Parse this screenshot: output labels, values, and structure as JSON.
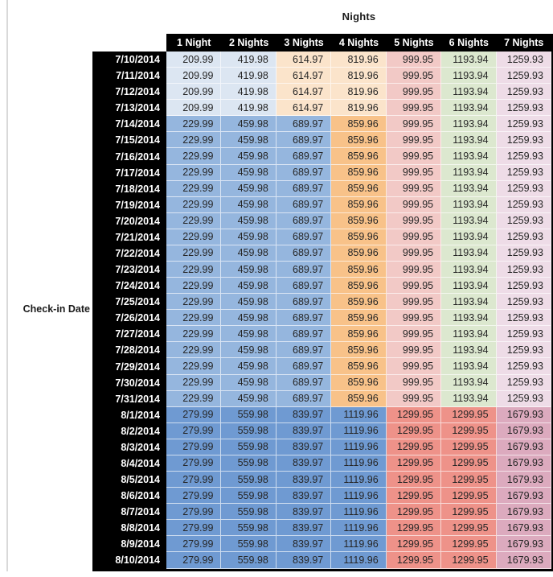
{
  "title": "Nights",
  "row_axis_label": "Check-in Date",
  "colors": {
    "header_bg": "#000000",
    "header_text": "#ffffff",
    "date_cell_bg": "#000000",
    "date_cell_text": "#ffffff",
    "value_text": "#262626",
    "table_border": "#000000",
    "page_gridline": "#d9d9d9"
  },
  "styles": {
    "early_july": [
      "#dce6f2",
      "#dce6f2",
      "#fbe4cb",
      "#fbe4cb",
      "#f2c9c6",
      "#dce8cf",
      "#eedce7"
    ],
    "mid_july": [
      "#95b6de",
      "#95b6de",
      "#95b6de",
      "#f8c289",
      "#f2c9c6",
      "#dce8cf",
      "#eedce7"
    ],
    "august": [
      "#6f9ad2",
      "#6f9ad2",
      "#6f9ad2",
      "#6f9ad2",
      "#ee9289",
      "#ee9289",
      "#dcaabe"
    ]
  },
  "chart_data": {
    "type": "table",
    "title": "Nights",
    "row_axis_label": "Check-in Date",
    "columns": [
      "1 Night",
      "2 Nights",
      "3 Nights",
      "4 Nights",
      "5 Nights",
      "6 Nights",
      "7 Nights"
    ],
    "rows": [
      {
        "date": "7/10/2014",
        "values": [
          "209.99",
          "419.98",
          "614.97",
          "819.96",
          "999.95",
          "1193.94",
          "1259.93"
        ],
        "style": "early_july"
      },
      {
        "date": "7/11/2014",
        "values": [
          "209.99",
          "419.98",
          "614.97",
          "819.96",
          "999.95",
          "1193.94",
          "1259.93"
        ],
        "style": "early_july"
      },
      {
        "date": "7/12/2014",
        "values": [
          "209.99",
          "419.98",
          "614.97",
          "819.96",
          "999.95",
          "1193.94",
          "1259.93"
        ],
        "style": "early_july"
      },
      {
        "date": "7/13/2014",
        "values": [
          "209.99",
          "419.98",
          "614.97",
          "819.96",
          "999.95",
          "1193.94",
          "1259.93"
        ],
        "style": "early_july"
      },
      {
        "date": "7/14/2014",
        "values": [
          "229.99",
          "459.98",
          "689.97",
          "859.96",
          "999.95",
          "1193.94",
          "1259.93"
        ],
        "style": "mid_july"
      },
      {
        "date": "7/15/2014",
        "values": [
          "229.99",
          "459.98",
          "689.97",
          "859.96",
          "999.95",
          "1193.94",
          "1259.93"
        ],
        "style": "mid_july"
      },
      {
        "date": "7/16/2014",
        "values": [
          "229.99",
          "459.98",
          "689.97",
          "859.96",
          "999.95",
          "1193.94",
          "1259.93"
        ],
        "style": "mid_july"
      },
      {
        "date": "7/17/2014",
        "values": [
          "229.99",
          "459.98",
          "689.97",
          "859.96",
          "999.95",
          "1193.94",
          "1259.93"
        ],
        "style": "mid_july"
      },
      {
        "date": "7/18/2014",
        "values": [
          "229.99",
          "459.98",
          "689.97",
          "859.96",
          "999.95",
          "1193.94",
          "1259.93"
        ],
        "style": "mid_july"
      },
      {
        "date": "7/19/2014",
        "values": [
          "229.99",
          "459.98",
          "689.97",
          "859.96",
          "999.95",
          "1193.94",
          "1259.93"
        ],
        "style": "mid_july"
      },
      {
        "date": "7/20/2014",
        "values": [
          "229.99",
          "459.98",
          "689.97",
          "859.96",
          "999.95",
          "1193.94",
          "1259.93"
        ],
        "style": "mid_july"
      },
      {
        "date": "7/21/2014",
        "values": [
          "229.99",
          "459.98",
          "689.97",
          "859.96",
          "999.95",
          "1193.94",
          "1259.93"
        ],
        "style": "mid_july"
      },
      {
        "date": "7/22/2014",
        "values": [
          "229.99",
          "459.98",
          "689.97",
          "859.96",
          "999.95",
          "1193.94",
          "1259.93"
        ],
        "style": "mid_july"
      },
      {
        "date": "7/23/2014",
        "values": [
          "229.99",
          "459.98",
          "689.97",
          "859.96",
          "999.95",
          "1193.94",
          "1259.93"
        ],
        "style": "mid_july"
      },
      {
        "date": "7/24/2014",
        "values": [
          "229.99",
          "459.98",
          "689.97",
          "859.96",
          "999.95",
          "1193.94",
          "1259.93"
        ],
        "style": "mid_july"
      },
      {
        "date": "7/25/2014",
        "values": [
          "229.99",
          "459.98",
          "689.97",
          "859.96",
          "999.95",
          "1193.94",
          "1259.93"
        ],
        "style": "mid_july"
      },
      {
        "date": "7/26/2014",
        "values": [
          "229.99",
          "459.98",
          "689.97",
          "859.96",
          "999.95",
          "1193.94",
          "1259.93"
        ],
        "style": "mid_july"
      },
      {
        "date": "7/27/2014",
        "values": [
          "229.99",
          "459.98",
          "689.97",
          "859.96",
          "999.95",
          "1193.94",
          "1259.93"
        ],
        "style": "mid_july"
      },
      {
        "date": "7/28/2014",
        "values": [
          "229.99",
          "459.98",
          "689.97",
          "859.96",
          "999.95",
          "1193.94",
          "1259.93"
        ],
        "style": "mid_july"
      },
      {
        "date": "7/29/2014",
        "values": [
          "229.99",
          "459.98",
          "689.97",
          "859.96",
          "999.95",
          "1193.94",
          "1259.93"
        ],
        "style": "mid_july"
      },
      {
        "date": "7/30/2014",
        "values": [
          "229.99",
          "459.98",
          "689.97",
          "859.96",
          "999.95",
          "1193.94",
          "1259.93"
        ],
        "style": "mid_july"
      },
      {
        "date": "7/31/2014",
        "values": [
          "229.99",
          "459.98",
          "689.97",
          "859.96",
          "999.95",
          "1193.94",
          "1259.93"
        ],
        "style": "mid_july"
      },
      {
        "date": "8/1/2014",
        "values": [
          "279.99",
          "559.98",
          "839.97",
          "1119.96",
          "1299.95",
          "1299.95",
          "1679.93"
        ],
        "style": "august"
      },
      {
        "date": "8/2/2014",
        "values": [
          "279.99",
          "559.98",
          "839.97",
          "1119.96",
          "1299.95",
          "1299.95",
          "1679.93"
        ],
        "style": "august"
      },
      {
        "date": "8/3/2014",
        "values": [
          "279.99",
          "559.98",
          "839.97",
          "1119.96",
          "1299.95",
          "1299.95",
          "1679.93"
        ],
        "style": "august"
      },
      {
        "date": "8/4/2014",
        "values": [
          "279.99",
          "559.98",
          "839.97",
          "1119.96",
          "1299.95",
          "1299.95",
          "1679.93"
        ],
        "style": "august"
      },
      {
        "date": "8/5/2014",
        "values": [
          "279.99",
          "559.98",
          "839.97",
          "1119.96",
          "1299.95",
          "1299.95",
          "1679.93"
        ],
        "style": "august"
      },
      {
        "date": "8/6/2014",
        "values": [
          "279.99",
          "559.98",
          "839.97",
          "1119.96",
          "1299.95",
          "1299.95",
          "1679.93"
        ],
        "style": "august"
      },
      {
        "date": "8/7/2014",
        "values": [
          "279.99",
          "559.98",
          "839.97",
          "1119.96",
          "1299.95",
          "1299.95",
          "1679.93"
        ],
        "style": "august"
      },
      {
        "date": "8/8/2014",
        "values": [
          "279.99",
          "559.98",
          "839.97",
          "1119.96",
          "1299.95",
          "1299.95",
          "1679.93"
        ],
        "style": "august"
      },
      {
        "date": "8/9/2014",
        "values": [
          "279.99",
          "559.98",
          "839.97",
          "1119.96",
          "1299.95",
          "1299.95",
          "1679.93"
        ],
        "style": "august"
      },
      {
        "date": "8/10/2014",
        "values": [
          "279.99",
          "559.98",
          "839.97",
          "1119.96",
          "1299.95",
          "1299.95",
          "1679.93"
        ],
        "style": "august"
      }
    ]
  }
}
